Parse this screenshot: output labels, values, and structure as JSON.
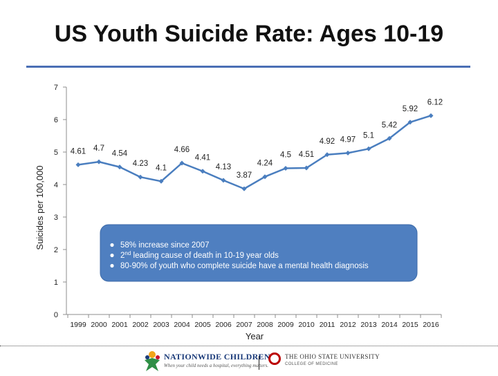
{
  "slide": {
    "title": "US Youth Suicide Rate: Ages 10-19"
  },
  "chart_data": {
    "type": "line",
    "title": "US Youth Suicide Rate: Ages 10-19",
    "xlabel": "Year",
    "ylabel": "Suicides per 100,000",
    "ylim": [
      0,
      7
    ],
    "yticks": [
      0,
      1,
      2,
      3,
      4,
      5,
      6,
      7
    ],
    "grid": false,
    "legend": "none",
    "categories": [
      "1999",
      "2000",
      "2001",
      "2002",
      "2003",
      "2004",
      "2005",
      "2006",
      "2007",
      "2008",
      "2009",
      "2010",
      "2011",
      "2012",
      "2013",
      "2014",
      "2015",
      "2016"
    ],
    "series": [
      {
        "name": "Suicides per 100,000",
        "values": [
          4.61,
          4.7,
          4.54,
          4.23,
          4.1,
          4.66,
          4.41,
          4.13,
          3.87,
          4.24,
          4.5,
          4.51,
          4.92,
          4.97,
          5.1,
          5.42,
          5.92,
          6.12
        ],
        "labels": [
          "4.61",
          "4.7",
          "4.54",
          "4.23",
          "4.1",
          "4.66",
          "4.41",
          "4.13",
          "3.87",
          "4.24",
          "4.5",
          "4.51",
          "4.92",
          "4.97",
          "5.1",
          "5.42",
          "5.92",
          "6.12"
        ],
        "color": "#4a7ebf"
      }
    ],
    "annotation": {
      "bullets": [
        {
          "lead": "58% increase since 2007",
          "sup": "",
          "rest": ""
        },
        {
          "lead": "2",
          "sup": "nd",
          "rest": " leading cause of death in 10-19 year olds"
        },
        {
          "lead": "80-90% of youth who complete suicide have a mental health diagnosis",
          "sup": "",
          "rest": ""
        }
      ],
      "fill": "#4f7fc0",
      "text_color": "#ffffff"
    }
  },
  "footer": {
    "logo_left": {
      "name": "NATIONWIDE CHILDREN'S",
      "tagline": "When your child needs a hospital, everything matters."
    },
    "logo_right": {
      "name": "THE OHIO STATE UNIVERSITY",
      "subtitle": "COLLEGE OF MEDICINE"
    }
  }
}
